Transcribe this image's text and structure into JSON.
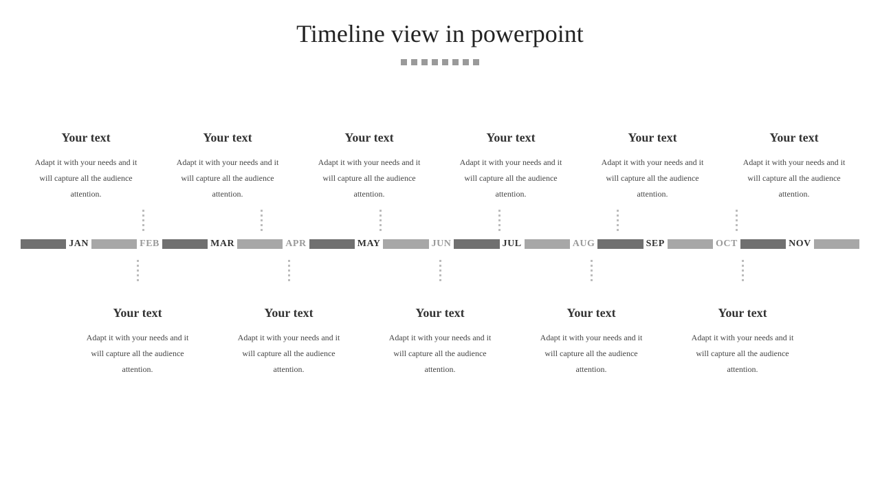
{
  "title": "Timeline view in powerpoint",
  "decor_dot_count": 8,
  "decor_dot_color": "#9a9a9a",
  "colors": {
    "bar_dark": "#707070",
    "bar_light": "#a7a7a7",
    "month_dark": "#333333",
    "month_light": "#9a9a9a",
    "title_color": "#222222",
    "block_title_color": "#333333",
    "block_body_color": "#444444",
    "vdot_color": "#bcbcbc",
    "background": "#ffffff"
  },
  "top_blocks": [
    {
      "title": "Your text",
      "body": "Adapt it with your needs and it will capture all the audience attention."
    },
    {
      "title": "Your text",
      "body": "Adapt it with your needs and it will capture all the audience attention."
    },
    {
      "title": "Your text",
      "body": "Adapt it with your needs and it will capture all the audience attention."
    },
    {
      "title": "Your text",
      "body": "Adapt it with your needs and it will capture all the audience attention."
    },
    {
      "title": "Your text",
      "body": "Adapt it with your needs and it will capture all the audience attention."
    },
    {
      "title": "Your text",
      "body": "Adapt it with your needs and it will capture all the audience attention."
    }
  ],
  "bottom_blocks": [
    {
      "title": "Your text",
      "body": "Adapt it with your needs and it will capture all the audience attention."
    },
    {
      "title": "Your text",
      "body": "Adapt it with your needs and it will capture all the audience attention."
    },
    {
      "title": "Your text",
      "body": "Adapt it with your needs and it will capture all the audience attention."
    },
    {
      "title": "Your text",
      "body": "Adapt it with your needs and it will capture all the audience attention."
    },
    {
      "title": "Your text",
      "body": "Adapt it with your needs and it will capture all the audience attention."
    }
  ],
  "months": [
    {
      "label": "JAN",
      "emph": true
    },
    {
      "label": "FEB",
      "emph": false
    },
    {
      "label": "MAR",
      "emph": true
    },
    {
      "label": "APR",
      "emph": false
    },
    {
      "label": "MAY",
      "emph": true
    },
    {
      "label": "JUN",
      "emph": false
    },
    {
      "label": "JUL",
      "emph": true
    },
    {
      "label": "AUG",
      "emph": false
    },
    {
      "label": "SEP",
      "emph": true
    },
    {
      "label": "OCT",
      "emph": false
    },
    {
      "label": "NOV",
      "emph": true
    }
  ]
}
